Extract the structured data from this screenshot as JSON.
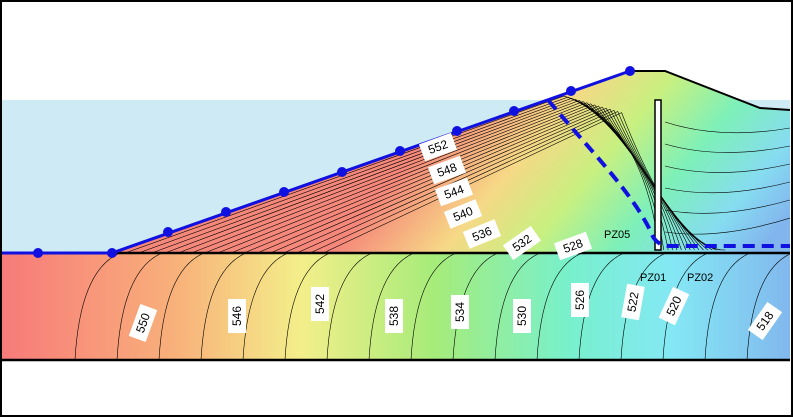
{
  "contour_labels": [
    552,
    548,
    544,
    540,
    536,
    532,
    528,
    550,
    546,
    542,
    538,
    534,
    530,
    526,
    522,
    520,
    518
  ],
  "piezometers": [
    "PZ05",
    "PZ01",
    "PZ02"
  ]
}
